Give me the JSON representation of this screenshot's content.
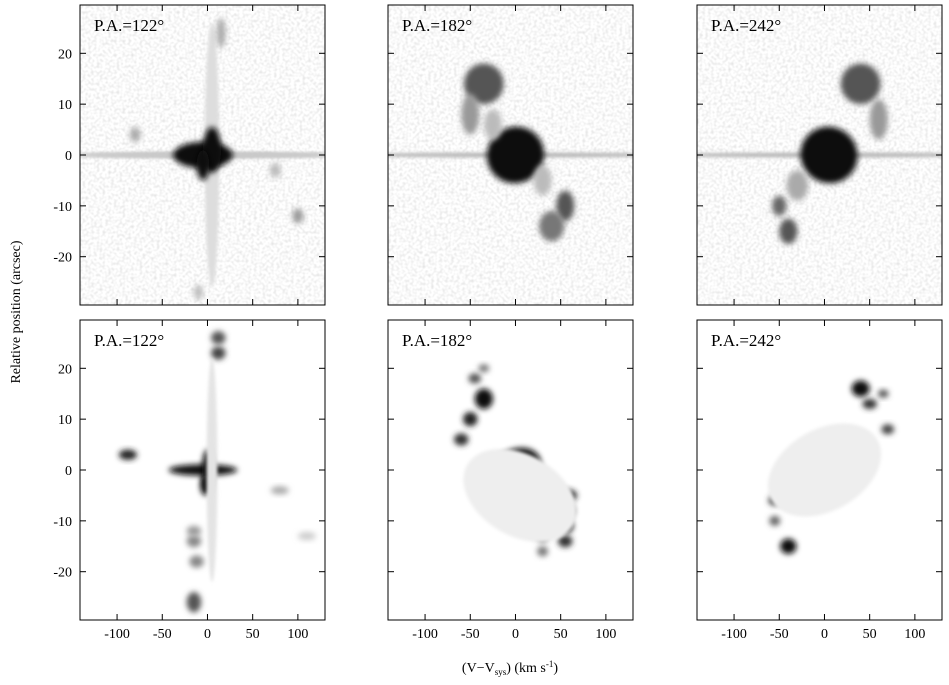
{
  "chart_data": [
    {
      "type": "image",
      "title": "P.A.=122°",
      "xlim": [
        -141,
        130
      ],
      "ylim": [
        -29.5,
        29.5
      ],
      "xticks": [
        -100,
        -50,
        0,
        50,
        100
      ],
      "yticks": [
        -20,
        -10,
        0,
        10,
        20
      ]
    },
    {
      "type": "image",
      "title": "P.A.=182°",
      "xlim": [
        -141,
        130
      ],
      "ylim": [
        -29.5,
        29.5
      ],
      "xticks": [
        -100,
        -50,
        0,
        50,
        100
      ],
      "yticks": [
        -20,
        -10,
        0,
        10,
        20
      ]
    },
    {
      "type": "image",
      "title": "P.A.=242°",
      "xlim": [
        -141,
        130
      ],
      "ylim": [
        -29.5,
        29.5
      ],
      "xticks": [
        -100,
        -50,
        0,
        50,
        100
      ],
      "yticks": [
        -20,
        -10,
        0,
        10,
        20
      ]
    },
    {
      "type": "image",
      "title": "P.A.=122°",
      "xlim": [
        -141,
        130
      ],
      "ylim": [
        -29.5,
        29.5
      ],
      "xticks": [
        -100,
        -50,
        0,
        50,
        100
      ],
      "yticks": [
        -20,
        -10,
        0,
        10,
        20
      ]
    },
    {
      "type": "image",
      "title": "P.A.=182°",
      "xlim": [
        -141,
        130
      ],
      "ylim": [
        -29.5,
        29.5
      ],
      "xticks": [
        -100,
        -50,
        0,
        50,
        100
      ],
      "yticks": [
        -20,
        -10,
        0,
        10,
        20
      ]
    },
    {
      "type": "image",
      "title": "P.A.=242°",
      "xlim": [
        -141,
        130
      ],
      "ylim": [
        -29.5,
        29.5
      ],
      "xticks": [
        -100,
        -50,
        0,
        50,
        100
      ],
      "yticks": [
        -20,
        -10,
        0,
        10,
        20
      ]
    }
  ],
  "figure": {
    "ylabel": "Relative position (arcsec)",
    "xlabel_parts": [
      "(V−V",
      "sys",
      ") (km s",
      "-1",
      ")"
    ]
  }
}
